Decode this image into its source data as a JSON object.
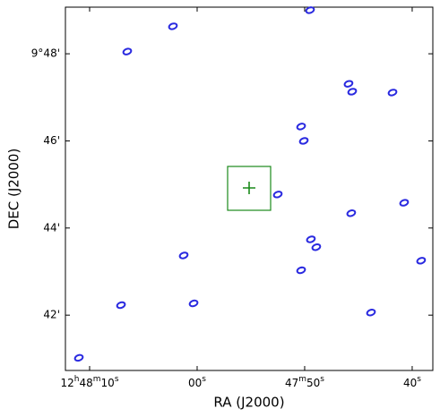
{
  "chart_data": {
    "type": "scatter",
    "x_label": "RA (J2000)",
    "y_label": "DEC (J2000)",
    "xlim": [
      72.25,
      38.08
    ],
    "ylim": [
      40.73,
      49.07
    ],
    "xticks": [
      {
        "value": 70,
        "label": "12h48m10s"
      },
      {
        "value": 60,
        "label": "00s"
      },
      {
        "value": 50,
        "label": "47m50s"
      },
      {
        "value": 40,
        "label": "40s"
      }
    ],
    "yticks": [
      {
        "value": 48,
        "label": "9°48'"
      },
      {
        "value": 46,
        "label": "46'"
      },
      {
        "value": 44,
        "label": "44'"
      },
      {
        "value": 42,
        "label": "42'"
      }
    ],
    "series": [
      {
        "color": "#2a2ae0",
        "x": [
          49.5,
          62.25,
          66.5,
          45.92,
          45.58,
          41.83,
          50.33,
          50.08,
          52.5,
          40.75,
          45.67,
          49.42,
          48.92,
          61.25,
          39.17,
          50.33,
          60.33,
          67.08,
          43.83,
          71.0
        ],
        "values": [
          49.0,
          48.63,
          48.05,
          47.31,
          47.13,
          47.11,
          46.33,
          46.0,
          44.77,
          44.58,
          44.34,
          43.74,
          43.56,
          43.37,
          43.25,
          43.03,
          42.27,
          42.23,
          42.06,
          41.02
        ]
      }
    ]
  }
}
